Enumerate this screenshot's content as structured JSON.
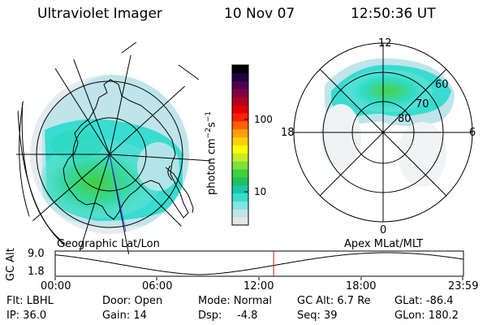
{
  "header": {
    "instrument": "Ultraviolet Imager",
    "date": "10 Nov 07",
    "time": "12:50:36 UT"
  },
  "colorbar": {
    "label_html": "photon cm",
    "ticks": [
      "100",
      "10"
    ],
    "colors": [
      "#e6e6e6",
      "#bfe4ea",
      "#7fe6e0",
      "#38dcd0",
      "#18c8a8",
      "#20c060",
      "#40d040",
      "#7ee03a",
      "#c8ec20",
      "#ffff00",
      "#ffd000",
      "#ffa000",
      "#ff6000",
      "#ff2000",
      "#e00000",
      "#b00020",
      "#800040",
      "#500050",
      "#200040",
      "#000000"
    ]
  },
  "left_panel": {
    "caption": "Geographic Lat/Lon"
  },
  "right_panel": {
    "caption": "Apex MLat/MLT",
    "mlt_labels": {
      "top": "12",
      "left": "18",
      "right": "6",
      "bottom": "0"
    },
    "lat_labels": [
      "60",
      "70",
      "80"
    ]
  },
  "altitude_plot": {
    "axis_label": "GC Alt",
    "y_ticks": [
      "9.0",
      "1.8"
    ],
    "x_ticks": [
      "00:00",
      "06:00",
      "12:00",
      "18:00",
      "23:59"
    ],
    "marker_time_hours": 12.84
  },
  "status": {
    "filter": "Flt: LBHL",
    "ip": "IP: 36.0",
    "door": "Door: Open",
    "gain": "Gain: 14",
    "mode": "Mode: Normal",
    "dsp_label": "Dsp:",
    "dsp_value": "-4.8",
    "gc_alt": "GC Alt: 6.7 Re",
    "seq": "Seq: 39",
    "glat": "GLat: -86.4",
    "glon": "GLon: 180.2"
  }
}
